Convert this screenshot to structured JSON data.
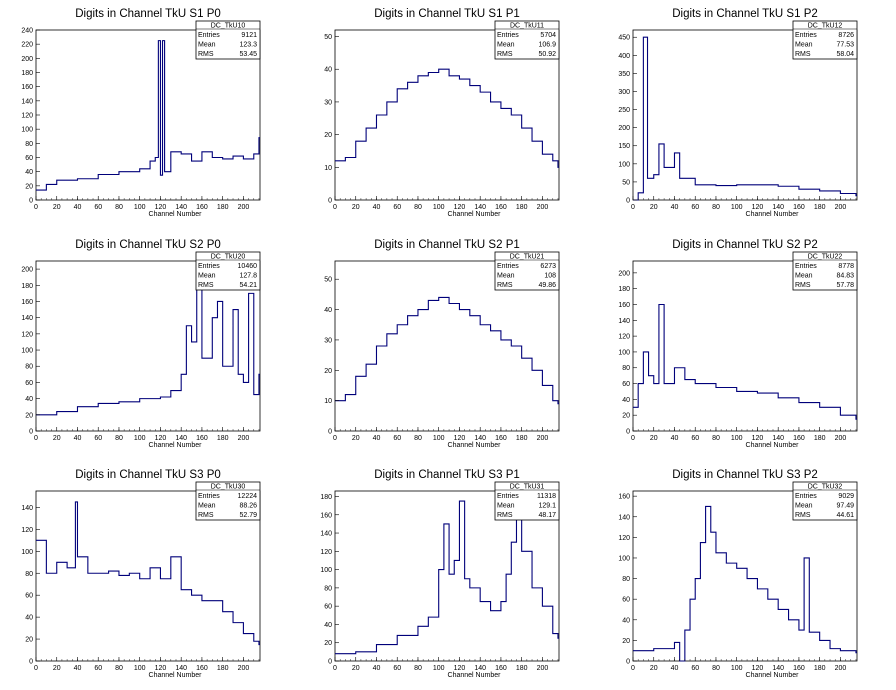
{
  "chart_data": [
    {
      "type": "histogram",
      "title": "Digits in Channel TkU S1 P0",
      "xlabel": "Channel Number",
      "xlim": [
        0,
        216
      ],
      "ylim": [
        0,
        240
      ],
      "xticks": [
        0,
        20,
        40,
        60,
        80,
        100,
        120,
        140,
        160,
        180,
        200
      ],
      "yticks": [
        0,
        20,
        40,
        60,
        80,
        100,
        120,
        140,
        160,
        180,
        200,
        220,
        240
      ],
      "stats": {
        "name": "DC_TkU10",
        "rows": [
          {
            "label": "Entries",
            "value": "9121"
          },
          {
            "label": "Mean",
            "value": "123.3"
          },
          {
            "label": "RMS",
            "value": "53.45"
          }
        ]
      },
      "points": [
        [
          0,
          14
        ],
        [
          10,
          22
        ],
        [
          20,
          28
        ],
        [
          40,
          30
        ],
        [
          60,
          36
        ],
        [
          80,
          40
        ],
        [
          100,
          44
        ],
        [
          110,
          55
        ],
        [
          115,
          60
        ],
        [
          118,
          225
        ],
        [
          120,
          35
        ],
        [
          122,
          225
        ],
        [
          124,
          40
        ],
        [
          130,
          68
        ],
        [
          140,
          65
        ],
        [
          150,
          55
        ],
        [
          160,
          68
        ],
        [
          170,
          60
        ],
        [
          180,
          58
        ],
        [
          190,
          62
        ],
        [
          200,
          58
        ],
        [
          210,
          65
        ],
        [
          215,
          88
        ]
      ]
    },
    {
      "type": "histogram",
      "title": "Digits in Channel TkU S1 P1",
      "xlabel": "Channel Number",
      "xlim": [
        0,
        216
      ],
      "ylim": [
        0,
        52
      ],
      "xticks": [
        0,
        20,
        40,
        60,
        80,
        100,
        120,
        140,
        160,
        180,
        200
      ],
      "yticks": [
        0,
        10,
        20,
        30,
        40,
        50
      ],
      "stats": {
        "name": "DC_TkU11",
        "rows": [
          {
            "label": "Entries",
            "value": "5704"
          },
          {
            "label": "Mean",
            "value": "106.9"
          },
          {
            "label": "RMS",
            "value": "50.92"
          }
        ]
      },
      "points": [
        [
          0,
          12
        ],
        [
          10,
          13
        ],
        [
          20,
          18
        ],
        [
          30,
          22
        ],
        [
          40,
          26
        ],
        [
          50,
          30
        ],
        [
          60,
          34
        ],
        [
          70,
          36
        ],
        [
          80,
          38
        ],
        [
          90,
          39
        ],
        [
          100,
          40
        ],
        [
          110,
          38
        ],
        [
          120,
          37
        ],
        [
          130,
          35
        ],
        [
          140,
          33
        ],
        [
          150,
          30
        ],
        [
          160,
          28
        ],
        [
          170,
          26
        ],
        [
          180,
          22
        ],
        [
          190,
          18
        ],
        [
          200,
          14
        ],
        [
          210,
          12
        ],
        [
          215,
          10
        ]
      ]
    },
    {
      "type": "histogram",
      "title": "Digits in Channel TkU S1 P2",
      "xlabel": "Channel Number",
      "xlim": [
        0,
        216
      ],
      "ylim": [
        0,
        470
      ],
      "xticks": [
        0,
        20,
        40,
        60,
        80,
        100,
        120,
        140,
        160,
        180,
        200
      ],
      "yticks": [
        0,
        50,
        100,
        150,
        200,
        250,
        300,
        350,
        400,
        450
      ],
      "stats": {
        "name": "DC_TkU12",
        "rows": [
          {
            "label": "Entries",
            "value": "8726"
          },
          {
            "label": "Mean",
            "value": "77.53"
          },
          {
            "label": "RMS",
            "value": "58.04"
          }
        ]
      },
      "points": [
        [
          0,
          0
        ],
        [
          5,
          20
        ],
        [
          10,
          450
        ],
        [
          14,
          60
        ],
        [
          20,
          70
        ],
        [
          25,
          155
        ],
        [
          30,
          90
        ],
        [
          40,
          130
        ],
        [
          45,
          60
        ],
        [
          60,
          42
        ],
        [
          80,
          40
        ],
        [
          100,
          42
        ],
        [
          120,
          42
        ],
        [
          140,
          38
        ],
        [
          160,
          30
        ],
        [
          180,
          25
        ],
        [
          200,
          18
        ],
        [
          215,
          12
        ]
      ]
    },
    {
      "type": "histogram",
      "title": "Digits in Channel TkU S2 P0",
      "xlabel": "Channel Number",
      "xlim": [
        0,
        216
      ],
      "ylim": [
        0,
        210
      ],
      "xticks": [
        0,
        20,
        40,
        60,
        80,
        100,
        120,
        140,
        160,
        180,
        200
      ],
      "yticks": [
        0,
        20,
        40,
        60,
        80,
        100,
        120,
        140,
        160,
        180,
        200
      ],
      "stats": {
        "name": "DC_TkU20",
        "rows": [
          {
            "label": "Entries",
            "value": "10460"
          },
          {
            "label": "Mean",
            "value": "127.8"
          },
          {
            "label": "RMS",
            "value": "54.21"
          }
        ]
      },
      "points": [
        [
          0,
          20
        ],
        [
          20,
          24
        ],
        [
          40,
          30
        ],
        [
          60,
          34
        ],
        [
          80,
          36
        ],
        [
          100,
          40
        ],
        [
          120,
          42
        ],
        [
          130,
          50
        ],
        [
          140,
          70
        ],
        [
          145,
          130
        ],
        [
          150,
          110
        ],
        [
          155,
          205
        ],
        [
          160,
          90
        ],
        [
          170,
          140
        ],
        [
          175,
          160
        ],
        [
          180,
          80
        ],
        [
          190,
          150
        ],
        [
          195,
          70
        ],
        [
          200,
          60
        ],
        [
          205,
          170
        ],
        [
          210,
          45
        ],
        [
          215,
          70
        ]
      ]
    },
    {
      "type": "histogram",
      "title": "Digits in Channel TkU S2 P1",
      "xlabel": "Channel Number",
      "xlim": [
        0,
        216
      ],
      "ylim": [
        0,
        56
      ],
      "xticks": [
        0,
        20,
        40,
        60,
        80,
        100,
        120,
        140,
        160,
        180,
        200
      ],
      "yticks": [
        0,
        10,
        20,
        30,
        40,
        50
      ],
      "stats": {
        "name": "DC_TkU21",
        "rows": [
          {
            "label": "Entries",
            "value": "6273"
          },
          {
            "label": "Mean",
            "value": "108"
          },
          {
            "label": "RMS",
            "value": "49.86"
          }
        ]
      },
      "points": [
        [
          0,
          10
        ],
        [
          10,
          12
        ],
        [
          20,
          18
        ],
        [
          30,
          22
        ],
        [
          40,
          28
        ],
        [
          50,
          32
        ],
        [
          60,
          35
        ],
        [
          70,
          38
        ],
        [
          80,
          40
        ],
        [
          90,
          43
        ],
        [
          100,
          44
        ],
        [
          110,
          42
        ],
        [
          120,
          40
        ],
        [
          130,
          38
        ],
        [
          140,
          35
        ],
        [
          150,
          33
        ],
        [
          160,
          30
        ],
        [
          170,
          28
        ],
        [
          180,
          24
        ],
        [
          190,
          20
        ],
        [
          200,
          15
        ],
        [
          210,
          10
        ],
        [
          215,
          9
        ]
      ]
    },
    {
      "type": "histogram",
      "title": "Digits in Channel TkU S2 P2",
      "xlabel": "Channel Number",
      "xlim": [
        0,
        216
      ],
      "ylim": [
        0,
        215
      ],
      "xticks": [
        0,
        20,
        40,
        60,
        80,
        100,
        120,
        140,
        160,
        180,
        200
      ],
      "yticks": [
        0,
        20,
        40,
        60,
        80,
        100,
        120,
        140,
        160,
        180,
        200
      ],
      "stats": {
        "name": "DC_TkU22",
        "rows": [
          {
            "label": "Entries",
            "value": "8778"
          },
          {
            "label": "Mean",
            "value": "84.83"
          },
          {
            "label": "RMS",
            "value": "57.78"
          }
        ]
      },
      "points": [
        [
          0,
          30
        ],
        [
          5,
          60
        ],
        [
          10,
          100
        ],
        [
          15,
          70
        ],
        [
          20,
          60
        ],
        [
          25,
          160
        ],
        [
          30,
          60
        ],
        [
          40,
          80
        ],
        [
          50,
          65
        ],
        [
          60,
          60
        ],
        [
          80,
          55
        ],
        [
          100,
          50
        ],
        [
          120,
          48
        ],
        [
          140,
          42
        ],
        [
          160,
          36
        ],
        [
          180,
          30
        ],
        [
          200,
          20
        ],
        [
          215,
          15
        ]
      ]
    },
    {
      "type": "histogram",
      "title": "Digits in Channel TkU S3 P0",
      "xlabel": "Channel Number",
      "xlim": [
        0,
        216
      ],
      "ylim": [
        0,
        155
      ],
      "xticks": [
        0,
        20,
        40,
        60,
        80,
        100,
        120,
        140,
        160,
        180,
        200
      ],
      "yticks": [
        0,
        20,
        40,
        60,
        80,
        100,
        120,
        140
      ],
      "stats": {
        "name": "DC_TkU30",
        "rows": [
          {
            "label": "Entries",
            "value": "12224"
          },
          {
            "label": "Mean",
            "value": "88.26"
          },
          {
            "label": "RMS",
            "value": "52.79"
          }
        ]
      },
      "points": [
        [
          0,
          110
        ],
        [
          10,
          80
        ],
        [
          20,
          90
        ],
        [
          30,
          85
        ],
        [
          38,
          145
        ],
        [
          40,
          95
        ],
        [
          50,
          80
        ],
        [
          60,
          80
        ],
        [
          70,
          82
        ],
        [
          80,
          78
        ],
        [
          90,
          80
        ],
        [
          100,
          75
        ],
        [
          110,
          85
        ],
        [
          120,
          75
        ],
        [
          130,
          95
        ],
        [
          140,
          65
        ],
        [
          150,
          60
        ],
        [
          160,
          55
        ],
        [
          170,
          55
        ],
        [
          180,
          45
        ],
        [
          190,
          35
        ],
        [
          200,
          25
        ],
        [
          210,
          18
        ],
        [
          215,
          15
        ]
      ]
    },
    {
      "type": "histogram",
      "title": "Digits in Channel TkU S3 P1",
      "xlabel": "Channel Number",
      "xlim": [
        0,
        216
      ],
      "ylim": [
        0,
        186
      ],
      "xticks": [
        0,
        20,
        40,
        60,
        80,
        100,
        120,
        140,
        160,
        180,
        200
      ],
      "yticks": [
        0,
        20,
        40,
        60,
        80,
        100,
        120,
        140,
        160,
        180
      ],
      "stats": {
        "name": "DC_TkU31",
        "rows": [
          {
            "label": "Entries",
            "value": "11318"
          },
          {
            "label": "Mean",
            "value": "129.1"
          },
          {
            "label": "RMS",
            "value": "48.17"
          }
        ]
      },
      "points": [
        [
          0,
          8
        ],
        [
          20,
          10
        ],
        [
          40,
          18
        ],
        [
          60,
          28
        ],
        [
          80,
          38
        ],
        [
          90,
          48
        ],
        [
          100,
          100
        ],
        [
          105,
          150
        ],
        [
          110,
          95
        ],
        [
          115,
          110
        ],
        [
          120,
          175
        ],
        [
          125,
          90
        ],
        [
          130,
          80
        ],
        [
          140,
          65
        ],
        [
          150,
          55
        ],
        [
          160,
          65
        ],
        [
          165,
          95
        ],
        [
          170,
          130
        ],
        [
          175,
          160
        ],
        [
          180,
          120
        ],
        [
          190,
          80
        ],
        [
          200,
          60
        ],
        [
          210,
          30
        ],
        [
          215,
          25
        ]
      ]
    },
    {
      "type": "histogram",
      "title": "Digits in Channel TkU S3 P2",
      "xlabel": "Channel Number",
      "xlim": [
        0,
        216
      ],
      "ylim": [
        0,
        165
      ],
      "xticks": [
        0,
        20,
        40,
        60,
        80,
        100,
        120,
        140,
        160,
        180,
        200
      ],
      "yticks": [
        0,
        20,
        40,
        60,
        80,
        100,
        120,
        140,
        160
      ],
      "stats": {
        "name": "DC_TkU32",
        "rows": [
          {
            "label": "Entries",
            "value": "9029"
          },
          {
            "label": "Mean",
            "value": "97.49"
          },
          {
            "label": "RMS",
            "value": "44.61"
          }
        ]
      },
      "points": [
        [
          0,
          10
        ],
        [
          20,
          12
        ],
        [
          40,
          18
        ],
        [
          45,
          0
        ],
        [
          50,
          30
        ],
        [
          55,
          60
        ],
        [
          60,
          80
        ],
        [
          65,
          115
        ],
        [
          70,
          150
        ],
        [
          75,
          125
        ],
        [
          80,
          105
        ],
        [
          90,
          95
        ],
        [
          100,
          90
        ],
        [
          110,
          80
        ],
        [
          120,
          70
        ],
        [
          130,
          60
        ],
        [
          140,
          50
        ],
        [
          150,
          40
        ],
        [
          160,
          30
        ],
        [
          165,
          100
        ],
        [
          170,
          28
        ],
        [
          180,
          20
        ],
        [
          190,
          12
        ],
        [
          200,
          10
        ],
        [
          215,
          8
        ]
      ]
    }
  ]
}
